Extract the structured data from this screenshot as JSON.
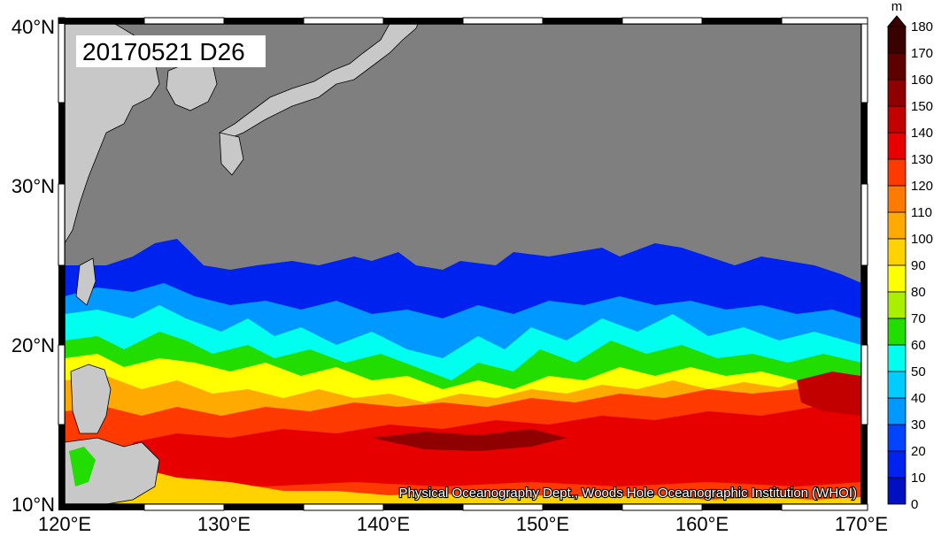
{
  "title": "20170521 D26",
  "credit": "Physical Oceanography Dept., Woods Hole Oceanographic Institution (WHOI)",
  "colorbar": {
    "unit": "m",
    "ticks": [
      "180",
      "170",
      "160",
      "150",
      "140",
      "130",
      "120",
      "110",
      "100",
      "90",
      "80",
      "70",
      "60",
      "50",
      "40",
      "30",
      "20",
      "10",
      "0"
    ],
    "colors": [
      "#3a0000",
      "#5e0000",
      "#8f0000",
      "#c20000",
      "#e60000",
      "#ff3a00",
      "#ff7a00",
      "#ffaa00",
      "#ffd200",
      "#ffff00",
      "#aaee00",
      "#22dd00",
      "#00ffee",
      "#00ccff",
      "#0099ff",
      "#0044ff",
      "#0022ee",
      "#0010c0",
      "#00008c"
    ]
  },
  "axes": {
    "lat_labels": [
      "40°N",
      "30°N",
      "20°N",
      "10°N"
    ],
    "lon_labels": [
      "120°E",
      "130°E",
      "140°E",
      "150°E",
      "160°E",
      "170°E"
    ]
  },
  "colors": {
    "land": "#c8c8c8",
    "mask": "#7f7f7f",
    "frame": "#000000"
  }
}
